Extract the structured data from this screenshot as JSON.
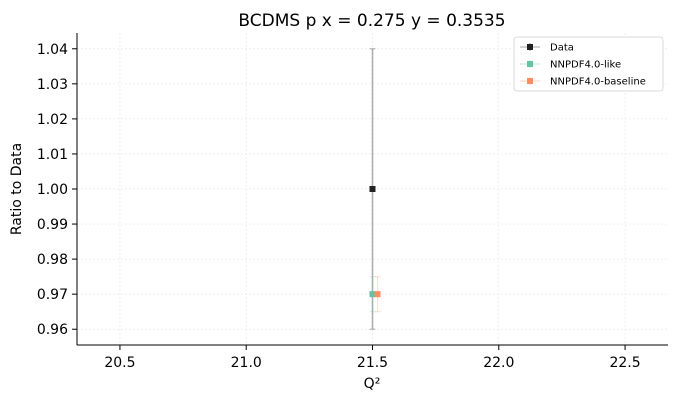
{
  "chart_data": {
    "type": "scatter",
    "title": "BCDMS p x = 0.275 y = 0.3535",
    "xlabel": "Q²",
    "ylabel": "Ratio to Data",
    "xlim": [
      20.33,
      22.67
    ],
    "ylim": [
      0.9555,
      1.0445
    ],
    "xticks": [
      20.5,
      21.0,
      21.5,
      22.0,
      22.5
    ],
    "xtick_labels": [
      "20.5",
      "21.0",
      "21.5",
      "22.0",
      "22.5"
    ],
    "yticks": [
      0.96,
      0.97,
      0.98,
      0.99,
      1.0,
      1.01,
      1.02,
      1.03,
      1.04
    ],
    "ytick_labels": [
      "0.96",
      "0.97",
      "0.98",
      "0.99",
      "1.00",
      "1.01",
      "1.02",
      "1.03",
      "1.04"
    ],
    "grid": true,
    "legend_position": "top-right",
    "series": [
      {
        "name": "Data",
        "color": "#222222",
        "x": [
          21.5
        ],
        "y": [
          1.0
        ],
        "yerr": [
          0.04
        ]
      },
      {
        "name": "NNPDF4.0-like",
        "color": "#66c2a5",
        "x": [
          21.5
        ],
        "y": [
          0.97
        ],
        "yerr": [
          0.005
        ]
      },
      {
        "name": "NNPDF4.0-baseline",
        "color": "#fc8d62",
        "x": [
          21.52
        ],
        "y": [
          0.97
        ],
        "yerr": [
          0.005
        ]
      }
    ]
  }
}
